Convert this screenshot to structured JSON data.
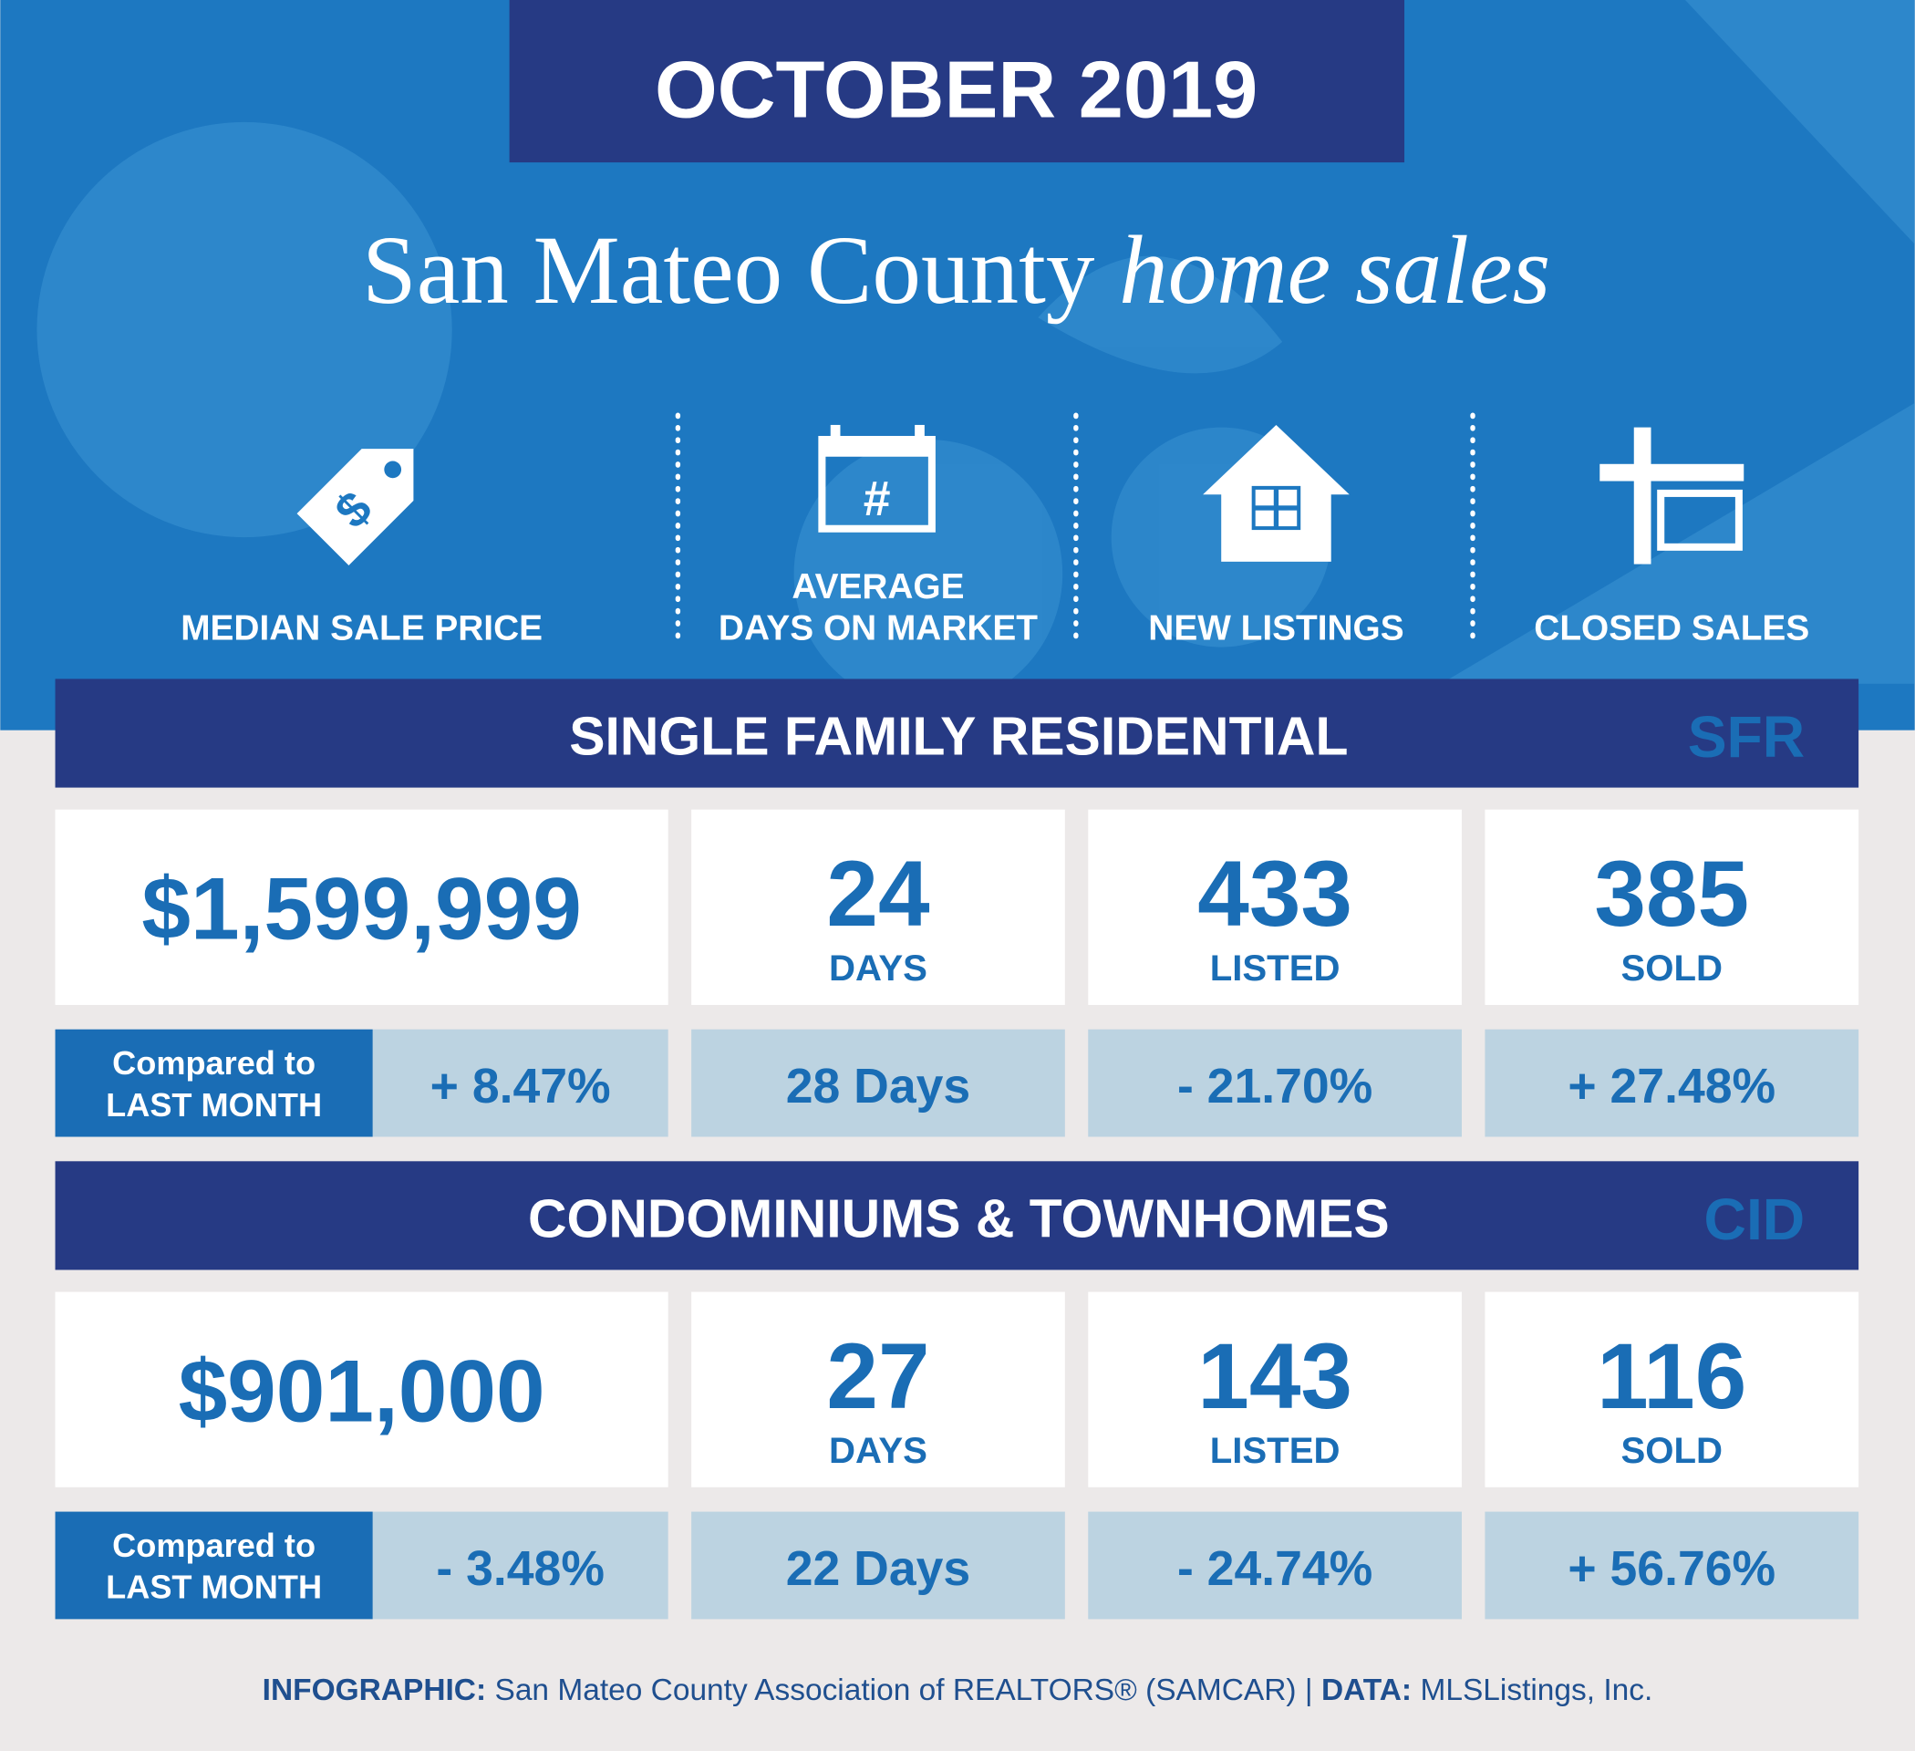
{
  "header": {
    "date": "OCTOBER 2019",
    "title": "San Mateo County",
    "title_italic": "home sales"
  },
  "metrics": [
    {
      "lines": [
        "MEDIAN SALE PRICE"
      ]
    },
    {
      "lines": [
        "AVERAGE",
        "DAYS ON MARKET"
      ]
    },
    {
      "lines": [
        "NEW LISTINGS"
      ]
    },
    {
      "lines": [
        "CLOSED SALES"
      ]
    }
  ],
  "sections": [
    {
      "title": "SINGLE FAMILY RESIDENTIAL",
      "code": "SFR",
      "values": [
        {
          "value": "$1,599,999"
        },
        {
          "value": "24",
          "unit": "DAYS"
        },
        {
          "value": "433",
          "unit": "LISTED"
        },
        {
          "value": "385",
          "unit": "SOLD"
        }
      ],
      "comparison_label": [
        "Compared to",
        "LAST MONTH"
      ],
      "comparisons": [
        "+ 8.47%",
        "28 Days",
        "- 21.70%",
        "+ 27.48%"
      ]
    },
    {
      "title": "CONDOMINIUMS & TOWNHOMES",
      "code": "CID",
      "values": [
        {
          "value": "$901,000"
        },
        {
          "value": "27",
          "unit": "DAYS"
        },
        {
          "value": "143",
          "unit": "LISTED"
        },
        {
          "value": "116",
          "unit": "SOLD"
        }
      ],
      "comparison_label": [
        "Compared to",
        "LAST MONTH"
      ],
      "comparisons": [
        "- 3.48%",
        "22 Days",
        "- 24.74%",
        "+ 56.76%"
      ]
    }
  ],
  "footer": {
    "infographic_label": "INFOGRAPHIC:",
    "source": "San Mateo County Association of REALTORS® (SAMCAR) |",
    "data_label": "DATA:",
    "data_source": "MLSListings, Inc."
  }
}
